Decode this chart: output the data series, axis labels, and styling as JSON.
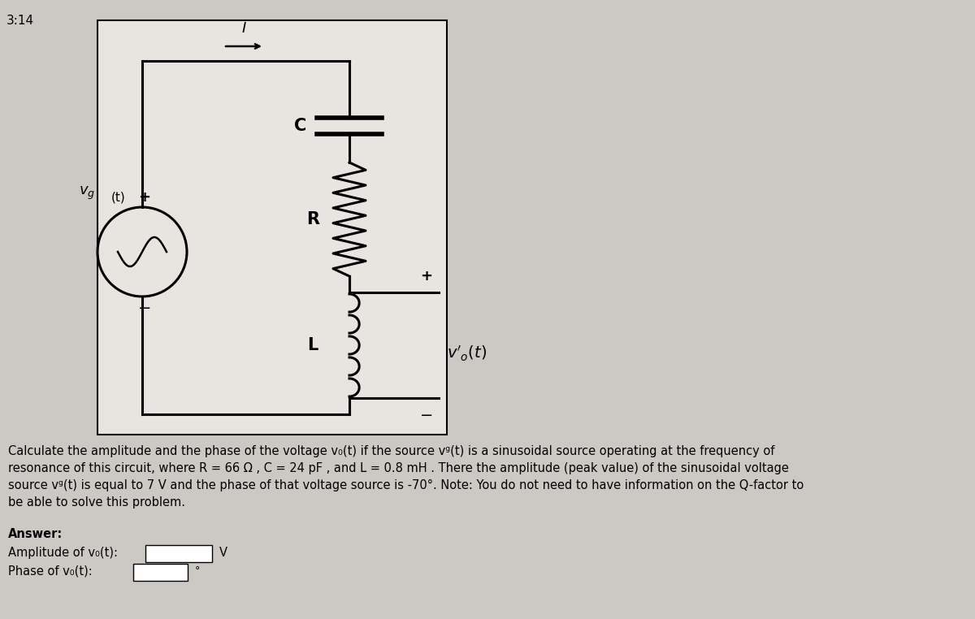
{
  "bg_color": "#ccc9c4",
  "circuit_bg": "#e8e5e0",
  "title_time": "3:14",
  "main_text_line1": "Calculate the amplitude and the phase of the voltage v₀(t) if the source vᵍ(t) is a sinusoidal source operating at the frequency of",
  "main_text_line2": "resonance of this circuit, where R = 66 Ω , C = 24 pF , and L = 0.8 mH . There the amplitude (peak value) of the sinusoidal voltage",
  "main_text_line3": "source vᵍ(t) is equal to 7 V and the phase of that voltage source is -70°. Note: You do not need to have information on the Q-factor to",
  "main_text_line4": "be able to solve this problem.",
  "answer_label": "Answer:",
  "amplitude_label": "Amplitude of v₀(t):",
  "phase_label": "Phase of v₀(t):",
  "unit_v": "V",
  "unit_deg": "°",
  "vg_label": "vᵍ(t)",
  "vo_label": "v₀(t)",
  "C_label": "C",
  "R_label": "R",
  "L_label": "L",
  "I_label": "I",
  "plus_sign": "+",
  "minus_sign": "−"
}
